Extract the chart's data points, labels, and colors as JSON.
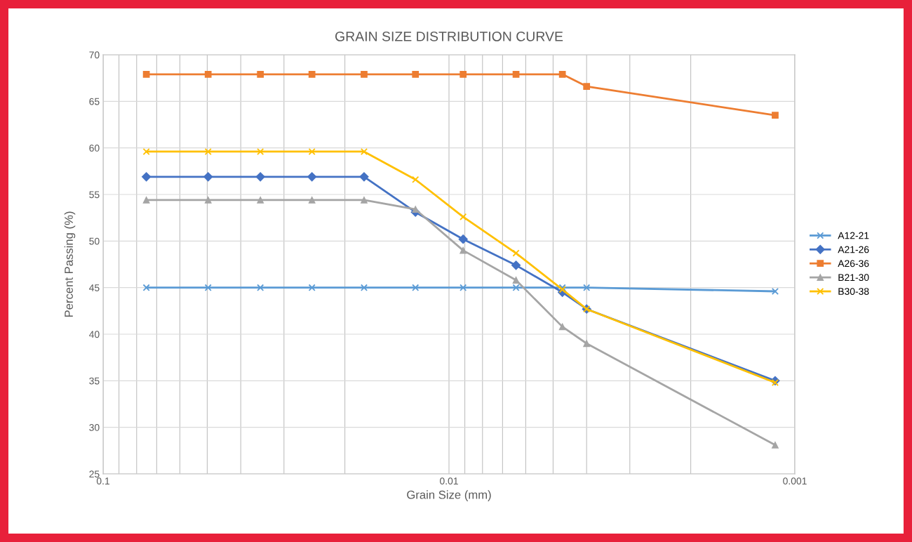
{
  "chart_data": {
    "type": "line",
    "title": "GRAIN SIZE DISTRIBUTION CURVE",
    "xlabel": "Grain Size (mm)",
    "ylabel": "Percent Passing (%)",
    "x": [
      0.075,
      0.0497,
      0.0351,
      0.0249,
      0.0176,
      0.0125,
      0.0091,
      0.0064,
      0.0047,
      0.004,
      0.00114
    ],
    "series": [
      {
        "name": "A12-21",
        "color": "#5b9bd5",
        "marker": "cross",
        "values": [
          45,
          45,
          45,
          45,
          45,
          45,
          45,
          45,
          45,
          45,
          44.6
        ]
      },
      {
        "name": "A21-26",
        "color": "#4472c4",
        "marker": "diamond",
        "values": [
          56.9,
          56.9,
          56.9,
          56.9,
          56.9,
          53.1,
          50.2,
          47.4,
          44.5,
          42.7,
          35.0
        ]
      },
      {
        "name": "A26-36",
        "color": "#ed7d31",
        "marker": "square",
        "values": [
          67.9,
          67.9,
          67.9,
          67.9,
          67.9,
          67.9,
          67.9,
          67.9,
          67.9,
          66.6,
          63.5
        ]
      },
      {
        "name": "B21-30",
        "color": "#a5a5a5",
        "marker": "triangle",
        "values": [
          54.4,
          54.4,
          54.4,
          54.4,
          54.4,
          53.4,
          49.0,
          45.8,
          40.8,
          39.0,
          28.1
        ]
      },
      {
        "name": "B30-38",
        "color": "#ffc000",
        "marker": "cross",
        "values": [
          59.6,
          59.6,
          59.6,
          59.6,
          59.6,
          56.6,
          52.6,
          48.7,
          44.8,
          42.7,
          34.8
        ]
      }
    ],
    "log": "x",
    "xlim": [
      0.1,
      0.001
    ],
    "xticks": [
      0.1,
      0.01,
      0.001
    ],
    "ylim": [
      25,
      70
    ],
    "yticks": [
      25,
      30,
      35,
      40,
      45,
      50,
      55,
      60,
      65,
      70
    ],
    "grid": true,
    "legend": "right",
    "line_style": "solid"
  }
}
